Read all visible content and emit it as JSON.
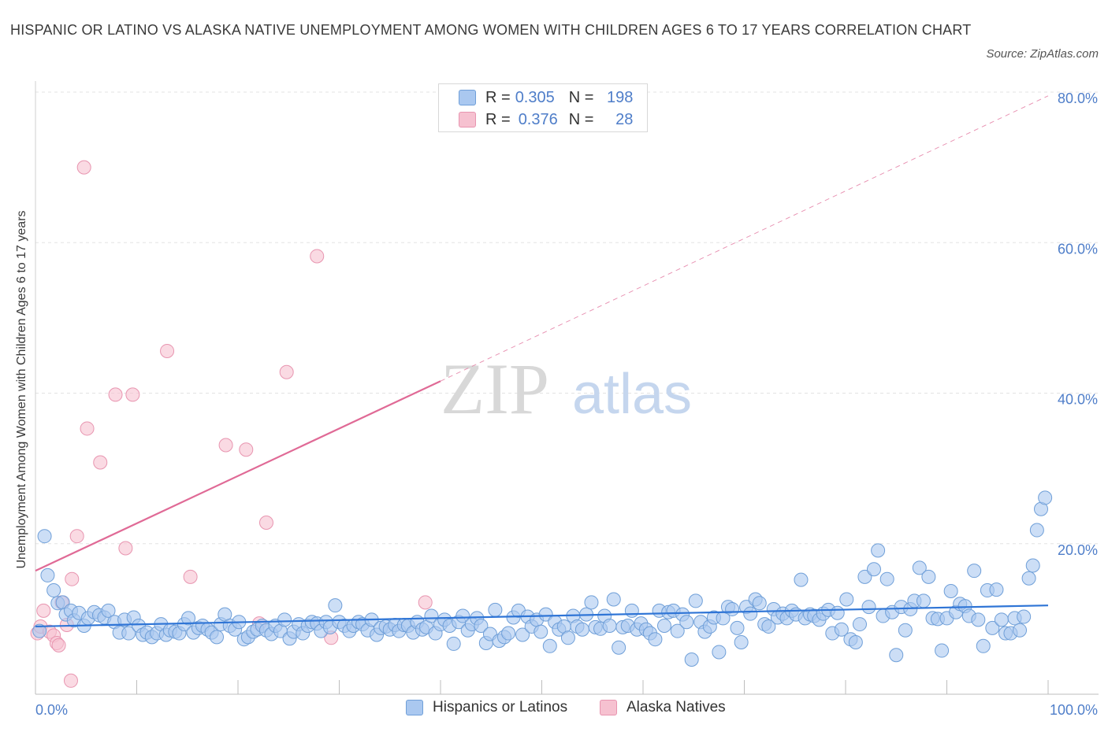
{
  "header": {
    "title": "HISPANIC OR LATINO VS ALASKA NATIVE UNEMPLOYMENT AMONG WOMEN WITH CHILDREN AGES 6 TO 17 YEARS CORRELATION CHART",
    "source": "Source: ZipAtlas.com"
  },
  "watermark": {
    "zip": "ZIP",
    "atlas": "atlas"
  },
  "legend": {
    "rows": [
      {
        "r_label": "R =",
        "r_value": "0.305",
        "n_label": "N =",
        "n_value": "198"
      },
      {
        "r_label": "R =",
        "r_value": "0.376",
        "n_label": "N =",
        "n_value": "28"
      }
    ]
  },
  "bottom_legend": {
    "hispanic": "Hispanics or Latinos",
    "alaska": "Alaska Natives"
  },
  "colors": {
    "hispanic_fill": "#aac8f0",
    "hispanic_stroke": "#6f9fd8",
    "hispanic_line": "#2f75d6",
    "alaska_fill": "#f6c1d0",
    "alaska_stroke": "#e895b0",
    "alaska_line": "#e06a96",
    "tick_label": "#4f7ec9",
    "grid": "#e3e3e3"
  },
  "chart_data": {
    "type": "scatter",
    "title": "HISPANIC OR LATINO VS ALASKA NATIVE UNEMPLOYMENT AMONG WOMEN WITH CHILDREN AGES 6 TO 17 YEARS CORRELATION CHART",
    "xlabel": "",
    "ylabel": "Unemployment Among Women with Children Ages 6 to 17 years",
    "xlim": [
      0,
      100
    ],
    "ylim": [
      0,
      80
    ],
    "x_tick_labels": [
      {
        "value": 0,
        "label": "0.0%"
      },
      {
        "value": 100,
        "label": "100.0%"
      }
    ],
    "y_tick_labels": [
      {
        "value": 20,
        "label": "20.0%"
      },
      {
        "value": 40,
        "label": "40.0%"
      },
      {
        "value": 60,
        "label": "60.0%"
      },
      {
        "value": 80,
        "label": "80.0%"
      }
    ],
    "grid": "horizontal dashed",
    "legend_position": "top-center",
    "series": [
      {
        "name": "Hispanics or Latinos",
        "R": 0.305,
        "N": 198,
        "trend": {
          "x": [
            0,
            100
          ],
          "y": [
            9.0,
            11.8
          ],
          "style": "solid"
        },
        "points": [
          [
            0.4,
            8.4
          ],
          [
            0.9,
            21.0
          ],
          [
            1.2,
            15.8
          ],
          [
            1.8,
            13.8
          ],
          [
            2.2,
            12.1
          ],
          [
            2.7,
            12.2
          ],
          [
            3.0,
            10.6
          ],
          [
            3.5,
            11.1
          ],
          [
            3.8,
            9.8
          ],
          [
            4.3,
            10.8
          ],
          [
            4.8,
            9.1
          ],
          [
            5.2,
            10.1
          ],
          [
            5.8,
            10.9
          ],
          [
            6.3,
            10.5
          ],
          [
            6.8,
            10.2
          ],
          [
            7.2,
            11.1
          ],
          [
            7.8,
            9.6
          ],
          [
            8.3,
            8.2
          ],
          [
            8.8,
            9.9
          ],
          [
            9.2,
            8.1
          ],
          [
            9.7,
            10.2
          ],
          [
            10.2,
            9.1
          ],
          [
            10.6,
            7.9
          ],
          [
            11.0,
            8.2
          ],
          [
            11.5,
            7.6
          ],
          [
            12.0,
            8.1
          ],
          [
            12.4,
            9.3
          ],
          [
            12.9,
            7.9
          ],
          [
            13.3,
            8.5
          ],
          [
            13.8,
            8.3
          ],
          [
            14.2,
            8.1
          ],
          [
            14.7,
            9.3
          ],
          [
            15.1,
            10.1
          ],
          [
            15.6,
            8.2
          ],
          [
            16.1,
            8.8
          ],
          [
            16.5,
            9.1
          ],
          [
            17.0,
            8.6
          ],
          [
            17.4,
            8.2
          ],
          [
            17.9,
            7.6
          ],
          [
            18.3,
            9.3
          ],
          [
            18.7,
            10.6
          ],
          [
            19.2,
            9.1
          ],
          [
            19.7,
            8.6
          ],
          [
            20.1,
            9.6
          ],
          [
            20.6,
            7.3
          ],
          [
            21.0,
            7.6
          ],
          [
            21.5,
            8.3
          ],
          [
            21.9,
            8.6
          ],
          [
            22.4,
            9.1
          ],
          [
            22.8,
            8.5
          ],
          [
            23.3,
            8.0
          ],
          [
            23.7,
            9.1
          ],
          [
            24.2,
            8.4
          ],
          [
            24.6,
            9.9
          ],
          [
            25.1,
            7.4
          ],
          [
            25.5,
            8.3
          ],
          [
            26.0,
            9.3
          ],
          [
            26.4,
            8.1
          ],
          [
            26.9,
            9.1
          ],
          [
            27.3,
            9.6
          ],
          [
            27.8,
            9.4
          ],
          [
            28.2,
            8.4
          ],
          [
            28.7,
            9.6
          ],
          [
            29.1,
            8.9
          ],
          [
            29.6,
            11.8
          ],
          [
            30.0,
            9.6
          ],
          [
            30.5,
            9.1
          ],
          [
            31.0,
            8.4
          ],
          [
            31.4,
            9.1
          ],
          [
            31.9,
            9.6
          ],
          [
            32.3,
            9.3
          ],
          [
            32.8,
            8.5
          ],
          [
            33.2,
            9.9
          ],
          [
            33.7,
            7.9
          ],
          [
            34.1,
            8.8
          ],
          [
            34.6,
            9.0
          ],
          [
            35.0,
            8.6
          ],
          [
            35.5,
            9.2
          ],
          [
            35.9,
            8.4
          ],
          [
            36.4,
            9.2
          ],
          [
            36.8,
            9.1
          ],
          [
            37.3,
            8.2
          ],
          [
            37.7,
            9.6
          ],
          [
            38.2,
            8.6
          ],
          [
            38.6,
            8.9
          ],
          [
            39.1,
            10.4
          ],
          [
            39.5,
            8.1
          ],
          [
            40.0,
            9.3
          ],
          [
            40.4,
            9.9
          ],
          [
            40.9,
            9.1
          ],
          [
            41.3,
            6.7
          ],
          [
            41.8,
            9.6
          ],
          [
            42.2,
            10.4
          ],
          [
            42.7,
            8.5
          ],
          [
            43.1,
            9.3
          ],
          [
            43.6,
            10.1
          ],
          [
            44.0,
            9.1
          ],
          [
            44.5,
            6.8
          ],
          [
            44.9,
            8.0
          ],
          [
            45.4,
            11.2
          ],
          [
            45.8,
            7.1
          ],
          [
            46.3,
            7.6
          ],
          [
            46.7,
            8.1
          ],
          [
            47.2,
            10.2
          ],
          [
            47.7,
            11.1
          ],
          [
            48.1,
            7.9
          ],
          [
            48.6,
            10.3
          ],
          [
            49.0,
            9.0
          ],
          [
            49.5,
            9.9
          ],
          [
            49.9,
            8.3
          ],
          [
            50.4,
            10.6
          ],
          [
            50.8,
            6.4
          ],
          [
            51.3,
            9.6
          ],
          [
            51.7,
            8.6
          ],
          [
            52.2,
            9.0
          ],
          [
            52.6,
            7.5
          ],
          [
            53.1,
            10.4
          ],
          [
            53.5,
            9.0
          ],
          [
            54.0,
            8.6
          ],
          [
            54.4,
            10.6
          ],
          [
            54.9,
            12.2
          ],
          [
            55.3,
            8.9
          ],
          [
            55.8,
            8.7
          ],
          [
            56.2,
            10.4
          ],
          [
            56.7,
            9.1
          ],
          [
            57.1,
            12.6
          ],
          [
            57.6,
            6.2
          ],
          [
            58.0,
            8.9
          ],
          [
            58.5,
            9.1
          ],
          [
            58.9,
            11.1
          ],
          [
            59.4,
            8.6
          ],
          [
            59.8,
            9.4
          ],
          [
            60.3,
            8.6
          ],
          [
            60.7,
            8.1
          ],
          [
            61.2,
            7.3
          ],
          [
            61.6,
            11.1
          ],
          [
            62.1,
            9.1
          ],
          [
            62.5,
            10.9
          ],
          [
            63.0,
            11.1
          ],
          [
            63.4,
            8.4
          ],
          [
            63.9,
            10.6
          ],
          [
            64.3,
            9.6
          ],
          [
            64.8,
            4.6
          ],
          [
            65.2,
            12.4
          ],
          [
            65.7,
            9.6
          ],
          [
            66.1,
            8.3
          ],
          [
            66.6,
            9.0
          ],
          [
            67.0,
            10.2
          ],
          [
            67.5,
            5.6
          ],
          [
            67.9,
            10.1
          ],
          [
            68.4,
            11.6
          ],
          [
            68.8,
            11.3
          ],
          [
            69.3,
            8.8
          ],
          [
            69.7,
            6.9
          ],
          [
            70.2,
            11.6
          ],
          [
            70.6,
            10.7
          ],
          [
            71.1,
            12.6
          ],
          [
            71.5,
            12.1
          ],
          [
            72.0,
            9.3
          ],
          [
            72.4,
            9.0
          ],
          [
            72.9,
            11.3
          ],
          [
            73.3,
            10.2
          ],
          [
            73.8,
            10.7
          ],
          [
            74.2,
            10.1
          ],
          [
            74.7,
            11.1
          ],
          [
            75.1,
            10.6
          ],
          [
            75.6,
            15.2
          ],
          [
            76.0,
            10.1
          ],
          [
            76.5,
            10.6
          ],
          [
            76.9,
            10.4
          ],
          [
            77.4,
            9.9
          ],
          [
            77.8,
            10.7
          ],
          [
            78.3,
            11.2
          ],
          [
            78.7,
            8.1
          ],
          [
            79.2,
            10.8
          ],
          [
            79.6,
            8.6
          ],
          [
            80.1,
            12.6
          ],
          [
            80.5,
            7.3
          ],
          [
            81.0,
            6.9
          ],
          [
            81.4,
            9.3
          ],
          [
            81.9,
            15.6
          ],
          [
            82.3,
            11.6
          ],
          [
            82.8,
            16.6
          ],
          [
            83.2,
            19.1
          ],
          [
            83.7,
            10.4
          ],
          [
            84.1,
            15.3
          ],
          [
            84.6,
            10.9
          ],
          [
            85.0,
            5.2
          ],
          [
            85.5,
            11.6
          ],
          [
            85.9,
            8.5
          ],
          [
            86.4,
            11.3
          ],
          [
            86.8,
            12.4
          ],
          [
            87.3,
            16.8
          ],
          [
            87.7,
            12.4
          ],
          [
            88.2,
            15.6
          ],
          [
            88.6,
            10.1
          ],
          [
            89.1,
            10.0
          ],
          [
            89.5,
            5.8
          ],
          [
            90.0,
            10.1
          ],
          [
            90.4,
            13.7
          ],
          [
            90.9,
            10.9
          ],
          [
            91.3,
            12.0
          ],
          [
            91.8,
            11.7
          ],
          [
            92.2,
            10.4
          ],
          [
            92.7,
            16.4
          ],
          [
            93.1,
            9.9
          ],
          [
            93.6,
            6.4
          ],
          [
            94.0,
            13.8
          ],
          [
            94.5,
            8.8
          ],
          [
            94.9,
            13.9
          ],
          [
            95.4,
            9.9
          ],
          [
            95.8,
            8.1
          ],
          [
            96.3,
            8.1
          ],
          [
            96.7,
            10.1
          ],
          [
            97.2,
            8.5
          ],
          [
            97.6,
            10.3
          ],
          [
            98.1,
            15.4
          ],
          [
            98.5,
            17.1
          ],
          [
            98.9,
            21.8
          ],
          [
            99.3,
            24.6
          ],
          [
            99.7,
            26.1
          ]
        ]
      },
      {
        "name": "Alaska Natives",
        "R": 0.376,
        "N": 28,
        "trend": {
          "x": [
            0,
            40
          ],
          "y": [
            16.4,
            41.6
          ],
          "style": "solid",
          "extension": {
            "x": [
              40,
              100
            ],
            "y": [
              41.6,
              79.5
            ],
            "style": "dashed"
          }
        },
        "points": [
          [
            0.2,
            8.1
          ],
          [
            0.5,
            9.0
          ],
          [
            0.8,
            11.1
          ],
          [
            1.4,
            8.3
          ],
          [
            1.8,
            7.8
          ],
          [
            2.1,
            6.8
          ],
          [
            2.3,
            6.5
          ],
          [
            2.6,
            12.2
          ],
          [
            3.1,
            9.2
          ],
          [
            3.6,
            15.3
          ],
          [
            4.1,
            21.0
          ],
          [
            4.8,
            70.0
          ],
          [
            5.1,
            35.3
          ],
          [
            6.4,
            30.8
          ],
          [
            7.9,
            39.8
          ],
          [
            8.9,
            19.4
          ],
          [
            9.6,
            39.8
          ],
          [
            13.0,
            45.6
          ],
          [
            15.3,
            15.6
          ],
          [
            18.8,
            33.1
          ],
          [
            20.8,
            32.5
          ],
          [
            22.1,
            9.4
          ],
          [
            22.8,
            22.8
          ],
          [
            24.8,
            42.8
          ],
          [
            27.8,
            58.2
          ],
          [
            29.2,
            7.5
          ],
          [
            38.5,
            12.2
          ],
          [
            3.5,
            1.8
          ]
        ]
      }
    ]
  }
}
